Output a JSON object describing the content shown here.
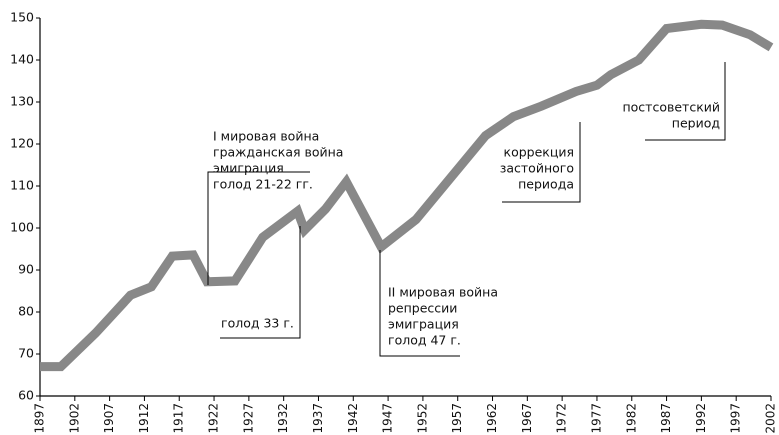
{
  "chart_data": {
    "type": "line",
    "x": [
      1897,
      1900,
      1905,
      1910,
      1913,
      1916,
      1919,
      1921,
      1925,
      1929,
      1934,
      1935,
      1938,
      1941,
      1946,
      1951,
      1956,
      1961,
      1965,
      1969,
      1974,
      1977,
      1979,
      1983,
      1987,
      1992,
      1995,
      1999,
      2002
    ],
    "values": [
      67,
      67,
      75,
      84,
      86,
      93.3,
      93.6,
      87.2,
      87.4,
      97.8,
      104,
      99.5,
      104.5,
      111,
      95.5,
      102,
      112,
      122,
      126.5,
      129,
      132.5,
      134,
      136.5,
      140,
      147.5,
      148.5,
      148.3,
      146,
      143
    ],
    "color": "#888888",
    "xlim": [
      1897,
      2002
    ],
    "xticks": [
      1897,
      1902,
      1907,
      1912,
      1917,
      1922,
      1927,
      1932,
      1937,
      1942,
      1947,
      1952,
      1957,
      1962,
      1967,
      1972,
      1977,
      1982,
      1987,
      1992,
      1997,
      2002
    ],
    "ylim": [
      60,
      150
    ],
    "yticks": [
      60,
      70,
      80,
      90,
      100,
      110,
      120,
      130,
      140,
      150
    ],
    "annotations": [
      [
        "I мировая война",
        "гражданская война",
        "эмиграция",
        "голод 21-22 гг."
      ],
      [
        "голод 33 г."
      ],
      [
        "II мировая война",
        "репрессии",
        "эмиграция",
        "голод 47 г."
      ],
      [
        "коррекция",
        "застойного",
        "периода"
      ],
      [
        "постсоветский",
        "период"
      ]
    ]
  }
}
